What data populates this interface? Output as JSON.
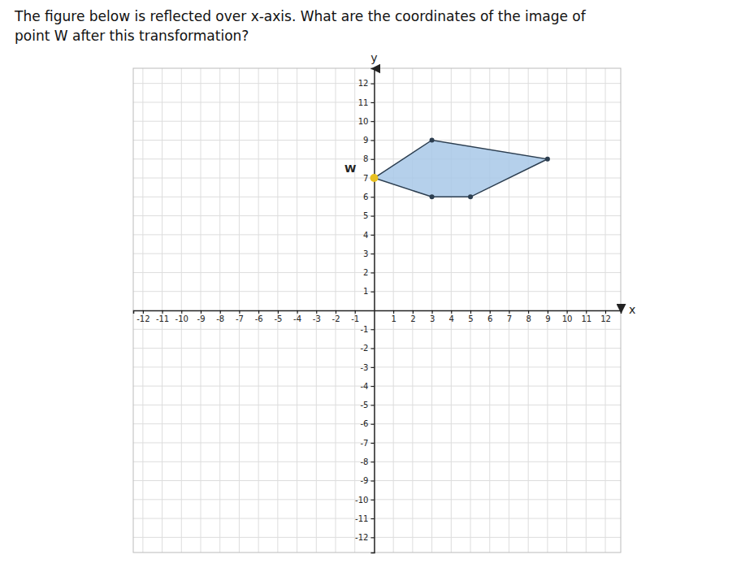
{
  "chart_data": {
    "type": "polygon",
    "title": "The figure below is reflected over x-axis. What are the coordinates of the image of",
    "subtitle": "point W after this transformation?",
    "x_label": "x",
    "y_label": "y",
    "x": [
      0,
      3,
      9,
      5,
      3
    ],
    "values": [
      7,
      9,
      8,
      6,
      6
    ],
    "color": "#a8c8e8",
    "annotations": [
      {
        "text": "W",
        "x": 0,
        "y": 7,
        "color": "#e8c020"
      }
    ],
    "xlim": [
      -12.5,
      12.8
    ],
    "ylim": [
      -12.8,
      12.8
    ],
    "xticks": [
      -12,
      -11,
      -10,
      -9,
      -8,
      -7,
      -6,
      -5,
      -4,
      -3,
      -2,
      -1,
      1,
      2,
      3,
      4,
      5,
      6,
      7,
      8,
      9,
      10,
      11,
      12
    ],
    "yticks": [
      -12,
      -11,
      -10,
      -9,
      -8,
      -7,
      -6,
      -5,
      -4,
      -3,
      -2,
      -1,
      1,
      2,
      3,
      4,
      5,
      6,
      7,
      8,
      9,
      10,
      11,
      12
    ],
    "grid": true
  }
}
